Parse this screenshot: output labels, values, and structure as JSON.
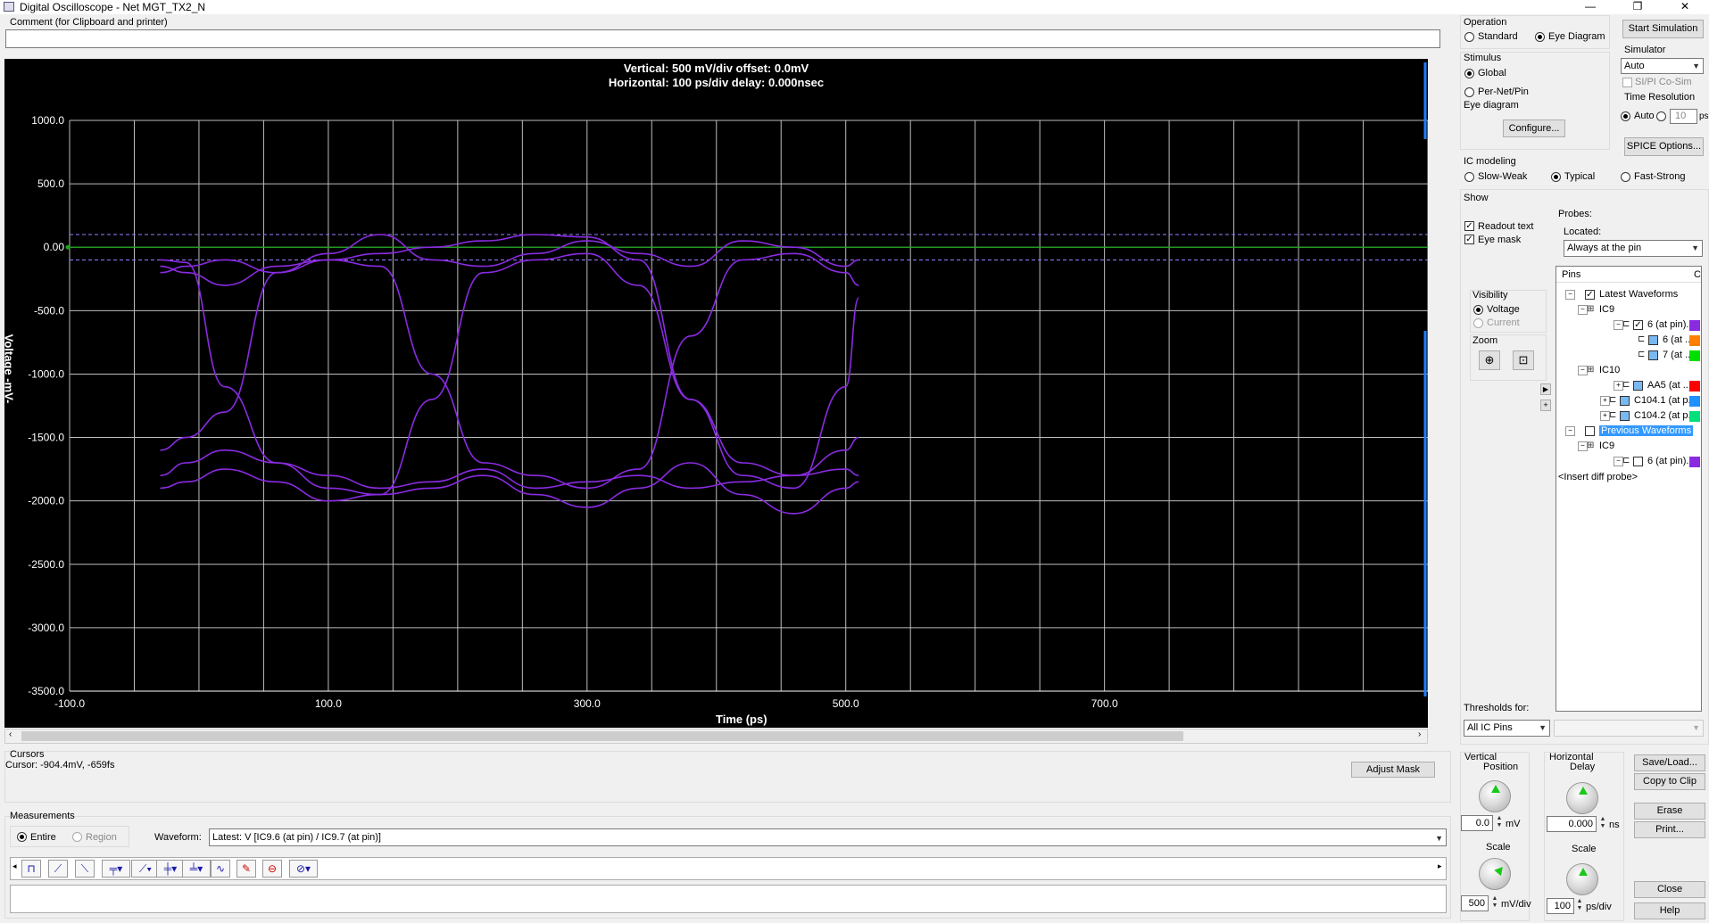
{
  "window": {
    "title": "Digital Oscilloscope - Net MGT_TX2_N",
    "min": "—",
    "max": "❐",
    "close": "✕"
  },
  "comment": {
    "label": "Comment (for Clipboard and printer)",
    "value": ""
  },
  "scope": {
    "header_line1": "Vertical: 500 mV/div  offset: 0.0mV",
    "header_line2": "Horizontal: 100 ps/div  delay: 0.000nsec",
    "y_axis_label": "Voltage -mV-",
    "x_axis_label": "Time  (ps)",
    "trace_color": "#8a2be2",
    "zero_line_color": "#1aa31a",
    "mask_line_color": "#9b7cff"
  },
  "chart_data": {
    "type": "line",
    "title": "",
    "xlabel": "Time  (ps)",
    "ylabel": "Voltage -mV-",
    "xlim": [
      -100,
      950
    ],
    "ylim": [
      -3500,
      1000
    ],
    "x_tick_labels": [
      "-100.0",
      "100.0",
      "300.0",
      "500.0",
      "700.0"
    ],
    "y_tick_labels": [
      "1000.0",
      "500.0",
      "0.00",
      "-500.0",
      "-1000.0",
      "-1500.0",
      "-2000.0",
      "-2500.0",
      "-3000.0",
      "-3500.0"
    ],
    "grid": true,
    "eye_mask_levels_mV": [
      100,
      -100
    ],
    "series": [
      {
        "x": [
          -30,
          -10,
          20,
          60,
          100,
          140,
          180,
          220,
          260,
          300,
          340,
          380,
          420,
          460,
          500,
          510
        ],
        "y": [
          -100,
          -120,
          -1100,
          -1700,
          -1800,
          -1900,
          -1850,
          -1750,
          -1900,
          -1850,
          -1800,
          -1900,
          -1850,
          -1800,
          -1750,
          -1800
        ]
      },
      {
        "x": [
          -30,
          -10,
          20,
          60,
          100,
          140,
          180,
          220,
          260,
          300,
          340,
          380,
          420,
          460,
          500,
          510
        ],
        "y": [
          -1600,
          -1500,
          -1300,
          -200,
          -100,
          -50,
          0,
          50,
          100,
          80,
          -100,
          -1200,
          -1700,
          -1800,
          -1600,
          -1500
        ]
      },
      {
        "x": [
          -30,
          -10,
          20,
          60,
          100,
          140,
          180,
          220,
          260,
          300,
          340,
          380,
          420,
          460,
          500,
          510
        ],
        "y": [
          -1800,
          -1700,
          -1600,
          -1700,
          -1900,
          -1950,
          -1200,
          -200,
          -100,
          -50,
          -300,
          -1200,
          -1800,
          -1900,
          -1100,
          -400
        ]
      },
      {
        "x": [
          -30,
          -10,
          20,
          60,
          100,
          140,
          180,
          220,
          260,
          300,
          340,
          380,
          420,
          460,
          500,
          510
        ],
        "y": [
          -150,
          -200,
          -300,
          -150,
          -100,
          -150,
          -1000,
          -1700,
          -1800,
          -1900,
          -1750,
          -700,
          -100,
          -50,
          -200,
          -300
        ]
      },
      {
        "x": [
          -30,
          -10,
          20,
          60,
          100,
          140,
          180,
          220,
          260,
          300,
          340,
          380,
          420,
          460,
          500,
          510
        ],
        "y": [
          -1900,
          -1850,
          -1750,
          -1850,
          -2000,
          -1950,
          -1900,
          -1800,
          -1950,
          -2050,
          -1900,
          -1700,
          -1950,
          -2100,
          -1900,
          -1850
        ]
      },
      {
        "x": [
          -30,
          -10,
          20,
          60,
          100,
          140,
          180,
          220,
          260,
          300,
          340,
          380,
          420,
          460,
          500,
          510
        ],
        "y": [
          -200,
          -150,
          -100,
          -200,
          -50,
          100,
          -100,
          -150,
          -50,
          50,
          -50,
          -150,
          50,
          0,
          -150,
          -100
        ]
      }
    ]
  },
  "operation": {
    "label": "Operation",
    "standard": "Standard",
    "eye": "Eye Diagram"
  },
  "stimulus": {
    "label": "Stimulus",
    "global": "Global",
    "per_net": "Per-Net/Pin",
    "eye_label": "Eye diagram",
    "configure": "Configure..."
  },
  "simulation": {
    "start": "Start Simulation",
    "simulator_label": "Simulator",
    "simulator_value": "Auto",
    "cosim": "SI/PI Co-Sim",
    "time_res_label": "Time Resolution",
    "auto": "Auto",
    "res_value": "10",
    "res_unit": "ps",
    "spice": "SPICE Options..."
  },
  "ic_modeling": {
    "label": "IC modeling",
    "slow": "Slow-Weak",
    "typical": "Typical",
    "fast": "Fast-Strong"
  },
  "show": {
    "label": "Show",
    "readout": "Readout text",
    "eye_mask": "Eye mask",
    "probes": "Probes:",
    "located": "Located:",
    "located_value": "Always at the pin"
  },
  "visibility": {
    "label": "Visibility",
    "voltage": "Voltage",
    "current": "Current",
    "zoom": "Zoom"
  },
  "tree": {
    "header_pins": "Pins",
    "header_c": "C",
    "rows": [
      {
        "text": "Latest Waveforms",
        "color": ""
      },
      {
        "text": "IC9",
        "color": ""
      },
      {
        "text": "6 (at pin)...",
        "color": "#8a2be2"
      },
      {
        "text": "6 (at ...",
        "color": "#ff7f00"
      },
      {
        "text": "7 (at ...",
        "color": "#00e000"
      },
      {
        "text": "IC10",
        "color": ""
      },
      {
        "text": "AA5 (at ...",
        "color": "#ff0000"
      },
      {
        "text": "C104.1 (at p...",
        "color": "#1e90ff"
      },
      {
        "text": "C104.2 (at p...",
        "color": "#00e07a"
      },
      {
        "text": "Previous Waveforms",
        "color": ""
      },
      {
        "text": "IC9",
        "color": ""
      },
      {
        "text": "6 (at pin)...",
        "color": "#8a2be2"
      },
      {
        "text": "<Insert diff probe>",
        "color": ""
      }
    ]
  },
  "thresholds": {
    "label": "Thresholds for:",
    "value": "All IC Pins"
  },
  "cursors": {
    "label": "Cursors",
    "value": "Cursor: -904.4mV, -659fs",
    "adjust": "Adjust Mask"
  },
  "measurements": {
    "label": "Measurements",
    "entire": "Entire",
    "region": "Region",
    "waveform_label": "Waveform:",
    "waveform_value": "Latest: V [IC9.6 (at pin) / IC9.7 (at pin)]"
  },
  "vertical": {
    "label1": "Vertical",
    "label2": "Position",
    "pos_value": "0.0",
    "pos_unit": "mV",
    "scale_label": "Scale",
    "scale_value": "500",
    "scale_unit": "mV/div"
  },
  "horizontal": {
    "label1": "Horizontal",
    "label2": "Delay",
    "delay_value": "0.000",
    "delay_unit": "ns",
    "scale_label": "Scale",
    "scale_value": "100",
    "scale_unit": "ps/div"
  },
  "side_buttons": {
    "save_load": "Save/Load...",
    "copy_clip": "Copy to Clip",
    "erase": "Erase",
    "print": "Print...",
    "close": "Close",
    "help": "Help"
  }
}
